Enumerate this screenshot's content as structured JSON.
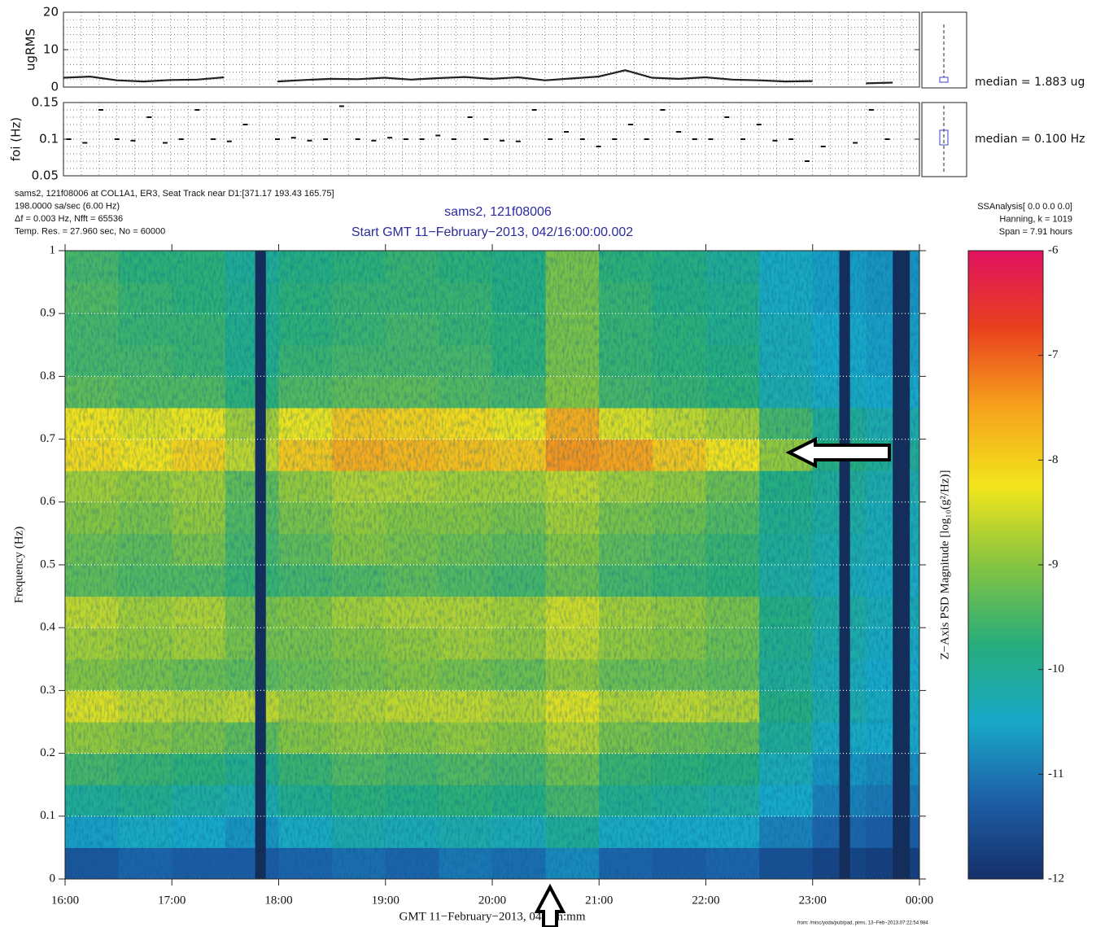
{
  "chart_data": [
    {
      "type": "line",
      "ylabel": "ugRMS",
      "annotation": "median = 1.883 ug",
      "x": [
        16,
        16.25,
        16.5,
        16.75,
        17,
        17.25,
        17.5,
        17.75,
        18,
        18.25,
        18.5,
        18.75,
        19,
        19.25,
        19.5,
        19.75,
        20,
        20.25,
        20.5,
        20.75,
        21,
        21.25,
        21.5,
        21.75,
        22,
        22.25,
        22.5,
        22.75,
        23,
        23.25,
        23.5,
        23.75
      ],
      "series": [
        {
          "color": "#222222",
          "values": [
            2.5,
            2.8,
            1.8,
            1.5,
            1.9,
            2.0,
            2.6,
            null,
            1.5,
            1.9,
            2.2,
            2.1,
            2.5,
            2.0,
            2.4,
            2.7,
            2.2,
            2.6,
            1.8,
            2.3,
            2.8,
            4.5,
            2.5,
            2.2,
            2.6,
            2.0,
            1.8,
            1.5,
            1.6,
            null,
            1.0,
            1.2
          ]
        }
      ],
      "xlim": [
        16,
        24
      ],
      "ylim": [
        0,
        20
      ],
      "yticks": [
        0,
        10,
        20
      ]
    },
    {
      "type": "scatter",
      "ylabel": "foi (Hz)",
      "annotation": "median = 0.100 Hz",
      "color": "#111111",
      "x": [
        16.05,
        16.2,
        16.35,
        16.5,
        16.65,
        16.8,
        16.95,
        17.1,
        17.25,
        17.4,
        17.55,
        17.7,
        18.0,
        18.15,
        18.3,
        18.45,
        18.6,
        18.75,
        18.9,
        19.05,
        19.2,
        19.35,
        19.5,
        19.65,
        19.8,
        19.95,
        20.1,
        20.25,
        20.4,
        20.55,
        20.7,
        20.85,
        21.0,
        21.15,
        21.3,
        21.45,
        21.6,
        21.75,
        21.9,
        22.05,
        22.2,
        22.35,
        22.5,
        22.65,
        22.8,
        22.95,
        23.1,
        23.4,
        23.55,
        23.7
      ],
      "values": [
        0.1,
        0.095,
        0.14,
        0.1,
        0.098,
        0.13,
        0.095,
        0.1,
        0.14,
        0.1,
        0.097,
        0.12,
        0.1,
        0.102,
        0.098,
        0.1,
        0.145,
        0.1,
        0.098,
        0.102,
        0.1,
        0.1,
        0.105,
        0.1,
        0.13,
        0.1,
        0.098,
        0.097,
        0.14,
        0.1,
        0.11,
        0.1,
        0.09,
        0.1,
        0.12,
        0.1,
        0.14,
        0.11,
        0.1,
        0.1,
        0.13,
        0.1,
        0.12,
        0.098,
        0.1,
        0.07,
        0.09,
        0.095,
        0.14,
        0.1
      ],
      "xlim": [
        16,
        24
      ],
      "ylim": [
        0.05,
        0.15
      ],
      "yticks": [
        0.05,
        0.1,
        0.15
      ]
    },
    {
      "type": "heatmap",
      "info_left": [
        "sams2, 121f08006 at COL1A1, ER3, Seat Track  near D1:[371.17 193.43 165.75]",
        "198.0000 sa/sec (6.00 Hz)",
        "Δf = 0.003 Hz,  Nfft = 65536",
        "Temp. Res. = 27.960 sec, No = 60000"
      ],
      "title": "sams2, 121f08006",
      "subtitle": "Start GMT 11−February−2013, 042/16:00:00.002",
      "info_right": [
        "SSAnalysis[ 0.0  0.0  0.0]",
        "Hanning, k = 1019",
        "Span = 7.91 hours"
      ],
      "xlabel": "GMT 11−February−2013, 042/hh:mm",
      "ylabel": "Frequency (Hz)",
      "colorbar_label": "Z−Axis PSD Magnitude [log₁₀(g²/Hz)]",
      "footer": "from: /misc/yoda/pub/pad, pims, 13−Feb−2013,07:22:54.984",
      "xlim": [
        16,
        24
      ],
      "ylim": [
        0,
        1
      ],
      "xticks": [
        {
          "value": 16,
          "label": "16:00"
        },
        {
          "value": 17,
          "label": "17:00"
        },
        {
          "value": 18,
          "label": "18:00"
        },
        {
          "value": 19,
          "label": "19:00"
        },
        {
          "value": 20,
          "label": "20:00"
        },
        {
          "value": 21,
          "label": "21:00"
        },
        {
          "value": 22,
          "label": "22:00"
        },
        {
          "value": 23,
          "label": "23:00"
        },
        {
          "value": 24,
          "label": "00:00"
        }
      ],
      "yticks": [
        0,
        0.1,
        0.2,
        0.3,
        0.4,
        0.5,
        0.6,
        0.7,
        0.8,
        0.9,
        1
      ],
      "grid": true,
      "xbins": [
        16,
        16.5,
        17,
        17.5,
        18,
        18.5,
        19,
        19.5,
        20,
        20.5,
        21,
        21.5,
        22,
        22.5,
        23,
        23.5,
        24
      ],
      "ybins": [
        0,
        0.05,
        0.1,
        0.15,
        0.2,
        0.25,
        0.3,
        0.35,
        0.4,
        0.45,
        0.5,
        0.55,
        0.6,
        0.65,
        0.7,
        0.75,
        0.8,
        0.85,
        0.9,
        0.95,
        1
      ],
      "z": [
        [
          -11.4,
          -11.2,
          -11.3,
          -11.3,
          -11.2,
          -11.1,
          -11.2,
          -11.0,
          -11.1,
          -10.8,
          -11.2,
          -11.3,
          -11.2,
          -11.5,
          -11.7,
          -11.8
        ],
        [
          -10.6,
          -10.4,
          -10.5,
          -10.7,
          -10.4,
          -10.2,
          -10.3,
          -10.2,
          -10.3,
          -10.0,
          -10.4,
          -10.5,
          -10.5,
          -10.9,
          -11.2,
          -11.3
        ],
        [
          -10.0,
          -9.9,
          -10.1,
          -10.2,
          -9.9,
          -9.7,
          -9.8,
          -9.7,
          -9.8,
          -9.5,
          -9.9,
          -10.0,
          -10.1,
          -10.5,
          -10.9,
          -11.0
        ],
        [
          -9.5,
          -9.6,
          -9.7,
          -9.9,
          -9.6,
          -9.4,
          -9.5,
          -9.4,
          -9.5,
          -9.2,
          -9.6,
          -9.7,
          -9.8,
          -10.3,
          -10.7,
          -10.8
        ],
        [
          -8.9,
          -9.0,
          -9.1,
          -9.3,
          -9.0,
          -8.9,
          -9.0,
          -8.9,
          -9.0,
          -8.7,
          -9.1,
          -9.2,
          -9.3,
          -10.0,
          -10.4,
          -10.5
        ],
        [
          -8.4,
          -8.6,
          -8.7,
          -8.6,
          -8.8,
          -8.7,
          -8.6,
          -8.6,
          -8.7,
          -8.4,
          -8.7,
          -8.6,
          -8.7,
          -9.8,
          -10.2,
          -10.4
        ],
        [
          -9.0,
          -9.1,
          -9.2,
          -9.3,
          -9.2,
          -9.1,
          -9.0,
          -9.1,
          -9.2,
          -8.9,
          -9.2,
          -9.2,
          -9.3,
          -10.0,
          -10.3,
          -10.5
        ],
        [
          -8.8,
          -8.9,
          -8.8,
          -9.1,
          -9.1,
          -9.0,
          -8.9,
          -8.8,
          -8.9,
          -8.6,
          -8.9,
          -9.0,
          -9.2,
          -9.9,
          -10.2,
          -10.4
        ],
        [
          -8.6,
          -8.8,
          -8.7,
          -9.1,
          -9.0,
          -8.8,
          -8.7,
          -8.7,
          -8.8,
          -8.5,
          -8.8,
          -8.9,
          -9.1,
          -9.8,
          -10.1,
          -10.3
        ],
        [
          -9.3,
          -9.4,
          -9.4,
          -9.6,
          -9.5,
          -9.4,
          -9.3,
          -9.4,
          -9.5,
          -9.2,
          -9.5,
          -9.6,
          -9.7,
          -10.1,
          -10.3,
          -10.4
        ],
        [
          -9.2,
          -9.3,
          -9.1,
          -9.5,
          -9.3,
          -9.0,
          -9.1,
          -9.2,
          -9.3,
          -9.0,
          -9.3,
          -9.4,
          -9.6,
          -10.0,
          -10.2,
          -10.3
        ],
        [
          -9.0,
          -9.1,
          -8.9,
          -9.4,
          -9.1,
          -8.9,
          -9.0,
          -9.0,
          -9.1,
          -8.8,
          -9.1,
          -9.2,
          -9.4,
          -9.9,
          -10.1,
          -10.3
        ],
        [
          -8.8,
          -8.9,
          -8.8,
          -9.3,
          -8.9,
          -8.7,
          -8.7,
          -8.8,
          -8.8,
          -8.6,
          -8.8,
          -8.9,
          -9.2,
          -9.8,
          -10.0,
          -10.2
        ],
        [
          -8.1,
          -8.2,
          -8.0,
          -8.6,
          -7.9,
          -7.6,
          -7.7,
          -7.8,
          -7.9,
          -7.4,
          -7.5,
          -7.9,
          -8.2,
          -8.9,
          -9.8,
          -10.0
        ],
        [
          -8.2,
          -8.4,
          -8.3,
          -8.8,
          -8.3,
          -7.9,
          -8.0,
          -8.1,
          -8.3,
          -7.6,
          -8.4,
          -8.6,
          -8.8,
          -9.5,
          -10.0,
          -10.2
        ],
        [
          -9.3,
          -9.4,
          -9.4,
          -9.7,
          -9.4,
          -9.3,
          -9.3,
          -9.4,
          -9.5,
          -9.0,
          -9.5,
          -9.6,
          -9.7,
          -10.2,
          -10.4,
          -10.5
        ],
        [
          -9.5,
          -9.5,
          -9.6,
          -9.9,
          -9.6,
          -9.5,
          -9.5,
          -9.5,
          -9.7,
          -9.1,
          -9.6,
          -9.7,
          -9.8,
          -10.3,
          -10.5,
          -10.6
        ],
        [
          -9.5,
          -9.6,
          -9.6,
          -9.9,
          -9.7,
          -9.6,
          -9.5,
          -9.6,
          -9.7,
          -9.1,
          -9.6,
          -9.7,
          -9.9,
          -10.3,
          -10.5,
          -10.6
        ],
        [
          -9.4,
          -9.6,
          -9.7,
          -9.9,
          -9.7,
          -9.6,
          -9.6,
          -9.6,
          -9.8,
          -9.1,
          -9.6,
          -9.8,
          -9.9,
          -10.4,
          -10.6,
          -10.7
        ],
        [
          -9.5,
          -9.7,
          -9.7,
          -10.0,
          -9.8,
          -9.7,
          -9.6,
          -9.7,
          -9.8,
          -9.1,
          -9.7,
          -9.8,
          -10.0,
          -10.4,
          -10.6,
          -10.7
        ]
      ],
      "gaps": [
        [
          17.78,
          17.88
        ],
        [
          23.25,
          23.35
        ],
        [
          23.75,
          23.91
        ]
      ],
      "gap_color": "#142e5c",
      "zlim": [
        -12,
        -6
      ],
      "zticks": [
        -6,
        -7,
        -8,
        -9,
        -10,
        -11,
        -12
      ],
      "colorscale": [
        "#15306a",
        "#1d5ea6",
        "#18a8c8",
        "#27ad7a",
        "#86c440",
        "#f2e51c",
        "#f6a21c",
        "#e9421d",
        "#e0115f"
      ]
    }
  ]
}
